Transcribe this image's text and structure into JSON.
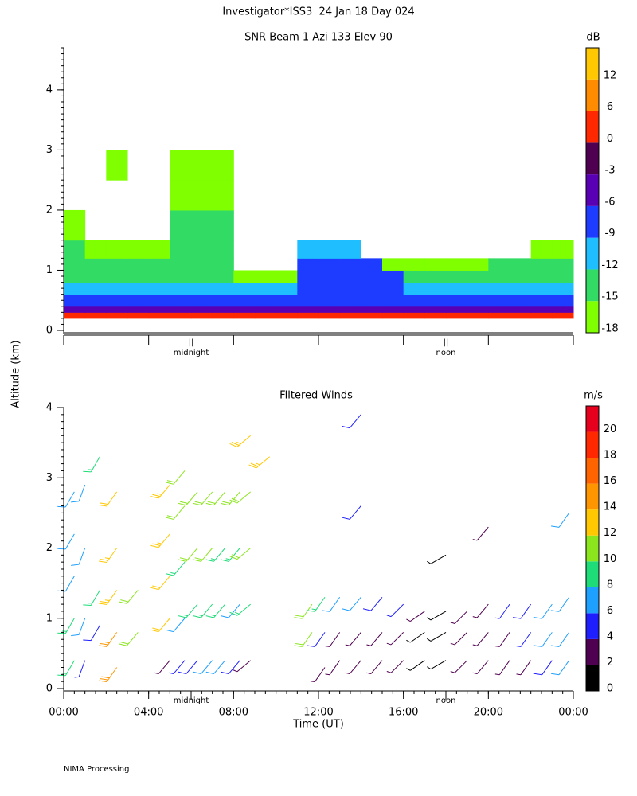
{
  "title": "Investigator*ISS3  24 Jan 18 Day 024",
  "ylabel": "Altitude (km)",
  "footer": "NIMA Processing",
  "chart_data": [
    {
      "type": "heatmap",
      "title": "SNR Beam 1 Azi 133 Elev 90",
      "colorbar_title": "dB",
      "levels": [
        -18,
        -15,
        -12,
        -9,
        -6,
        -3,
        0,
        6,
        12
      ],
      "colors": [
        "#7fff00",
        "#32dc64",
        "#1ebeff",
        "#1e3cff",
        "#5a00b4",
        "#500050",
        "#ff2800",
        "#ff8c00",
        "#ffc800"
      ],
      "xlim": [
        0,
        24
      ],
      "xticks": [
        0,
        4,
        8,
        12,
        16,
        20,
        24
      ],
      "ylim": [
        0,
        4.7
      ],
      "yticks": [
        0,
        1,
        2,
        3,
        4
      ],
      "annotations": [
        {
          "text": "midnight",
          "x": 6
        },
        {
          "text": "noon",
          "x": 18
        }
      ],
      "x_edges": [
        0,
        1,
        2,
        3,
        4,
        5,
        6,
        7,
        8,
        9,
        10,
        11,
        12,
        13,
        14,
        15,
        16,
        17,
        18,
        19,
        20,
        21,
        22,
        23,
        24
      ],
      "y_edges": [
        0.2,
        0.3,
        0.4,
        0.6,
        0.8,
        1.0,
        1.2,
        1.5,
        2.0,
        2.5,
        3.0
      ],
      "values": [
        [
          2,
          2,
          2,
          2,
          2,
          2,
          2,
          2,
          2,
          2,
          2,
          2,
          2,
          2,
          2,
          2,
          2,
          2,
          2,
          2,
          2,
          2,
          2,
          2
        ],
        [
          -4,
          -4,
          -4,
          -4,
          -4,
          -4,
          -4,
          -4,
          -4,
          -4,
          -4,
          -4,
          -4,
          -4,
          -4,
          -4,
          -4,
          -4,
          -4,
          -4,
          -4,
          -4,
          -4,
          -4
        ],
        [
          -8,
          -8,
          -8,
          -8,
          -8,
          -8,
          -8,
          -8,
          -8,
          -8,
          -8,
          -8,
          -8,
          -8,
          -8,
          -8,
          -8,
          -8,
          -8,
          -8,
          -8,
          -8,
          -8,
          -8
        ],
        [
          -11,
          -11,
          -11,
          -11,
          -11,
          -11,
          -11,
          -11,
          -11,
          -11,
          -11,
          -8,
          -8,
          -8,
          -8,
          -8,
          -11,
          -11,
          -11,
          -11,
          -11,
          -11,
          -11,
          -11
        ],
        [
          -13,
          -13,
          -13,
          -13,
          -13,
          -13,
          -13,
          -13,
          -16,
          -16,
          -16,
          -8,
          -8,
          -8,
          -8,
          -8,
          -13,
          -13,
          -13,
          -13,
          -13,
          -13,
          -13,
          -13
        ],
        [
          -15,
          -15,
          -15,
          -15,
          -15,
          -15,
          -15,
          -15,
          null,
          null,
          null,
          -9,
          -9,
          -9,
          -9,
          -16,
          -16,
          -16,
          -16,
          -16,
          -14,
          -14,
          -14,
          -14
        ],
        [
          -14,
          -17,
          -17,
          -17,
          -17,
          -14,
          -14,
          -14,
          null,
          null,
          null,
          -11,
          -11,
          -11,
          null,
          null,
          null,
          null,
          null,
          null,
          null,
          null,
          -16,
          -16
        ],
        [
          -17,
          null,
          null,
          null,
          null,
          -15,
          -15,
          -15,
          null,
          null,
          null,
          null,
          null,
          null,
          null,
          null,
          null,
          null,
          null,
          null,
          null,
          null,
          null,
          null
        ],
        [
          null,
          null,
          null,
          null,
          null,
          -16,
          -16,
          -16,
          null,
          null,
          null,
          null,
          null,
          null,
          null,
          null,
          null,
          null,
          null,
          null,
          null,
          null,
          null,
          null
        ],
        [
          null,
          null,
          -16,
          null,
          null,
          -16,
          -16,
          -16,
          null,
          null,
          null,
          null,
          null,
          null,
          null,
          null,
          null,
          null,
          null,
          null,
          null,
          null,
          null,
          null
        ]
      ]
    },
    {
      "type": "barbs",
      "title": "Filtered Winds",
      "colorbar_title": "m/s",
      "xlabel": "Time (UT)",
      "clim": [
        0,
        22
      ],
      "cticks": [
        0,
        2,
        4,
        6,
        8,
        10,
        12,
        14,
        16,
        18,
        20
      ],
      "colors": [
        "#000000",
        "#500050",
        "#1e1eff",
        "#1ea0ff",
        "#1edc78",
        "#8ce61e",
        "#ffc800",
        "#ff9600",
        "#ff6400",
        "#ff2800",
        "#e6001e"
      ],
      "xlim": [
        0,
        24
      ],
      "ylim": [
        0,
        4
      ],
      "yticks": [
        0,
        1,
        2,
        3,
        4
      ],
      "xticks": [
        {
          "value": 0,
          "label": "00:00"
        },
        {
          "value": 4,
          "label": "04:00"
        },
        {
          "value": 8,
          "label": "08:00"
        },
        {
          "value": 12,
          "label": "12:00"
        },
        {
          "value": 16,
          "label": "16:00"
        },
        {
          "value": 20,
          "label": "20:00"
        },
        {
          "value": 24,
          "label": "00:00"
        }
      ],
      "annotations": [
        {
          "text": "midnight",
          "x": 6
        },
        {
          "text": "noon",
          "x": 18
        }
      ],
      "columns": [
        {
          "time": 0.5,
          "direction": 210,
          "altitude": [
            0.4,
            1.0,
            1.6,
            2.2,
            2.8
          ],
          "speed": [
            9,
            8,
            7,
            7,
            6
          ]
        },
        {
          "time": 1.0,
          "direction": 200,
          "altitude": [
            0.4,
            1.0,
            2.0,
            2.9
          ],
          "speed": [
            4,
            6,
            7,
            6
          ]
        },
        {
          "time": 1.7,
          "direction": 210,
          "altitude": [
            0.9,
            1.4,
            3.3
          ],
          "speed": [
            5,
            8,
            9
          ]
        },
        {
          "time": 2.5,
          "direction": 215,
          "altitude": [
            0.3,
            0.8,
            1.4,
            2.0,
            2.8
          ],
          "speed": [
            15,
            14,
            13,
            13,
            12
          ]
        },
        {
          "time": 3.5,
          "direction": 220,
          "altitude": [
            0.8,
            1.4
          ],
          "speed": [
            11,
            11
          ]
        },
        {
          "time": 5.0,
          "direction": 220,
          "altitude": [
            0.4,
            1.0,
            1.6,
            2.2,
            2.9
          ],
          "speed": [
            3,
            12,
            12,
            13,
            13
          ]
        },
        {
          "time": 5.7,
          "direction": 220,
          "altitude": [
            0.4,
            1.0,
            1.8,
            2.6,
            3.1
          ],
          "speed": [
            4,
            7,
            9,
            10,
            10
          ]
        },
        {
          "time": 6.3,
          "direction": 220,
          "altitude": [
            0.4,
            1.2,
            2.0,
            2.8
          ],
          "speed": [
            5,
            8,
            10,
            10
          ]
        },
        {
          "time": 7.0,
          "direction": 220,
          "altitude": [
            0.4,
            1.2,
            2.0,
            2.8
          ],
          "speed": [
            6,
            8,
            10,
            11
          ]
        },
        {
          "time": 7.6,
          "direction": 220,
          "altitude": [
            0.4,
            1.2,
            2.0,
            2.8
          ],
          "speed": [
            7,
            8,
            9,
            10
          ]
        },
        {
          "time": 8.3,
          "direction": 220,
          "altitude": [
            0.4,
            1.2,
            2.0,
            2.8
          ],
          "speed": [
            5,
            7,
            9,
            10
          ]
        },
        {
          "time": 8.8,
          "direction": 230,
          "altitude": [
            0.4,
            1.2,
            2.0,
            2.8,
            3.6
          ],
          "speed": [
            3,
            8,
            10,
            10,
            13
          ]
        },
        {
          "time": 9.7,
          "direction": 230,
          "altitude": [
            3.3
          ],
          "speed": [
            13
          ]
        },
        {
          "time": 11.7,
          "direction": 215,
          "altitude": [
            0.8,
            1.2
          ],
          "speed": [
            10,
            10
          ]
        },
        {
          "time": 12.3,
          "direction": 215,
          "altitude": [
            0.3,
            0.8,
            1.3
          ],
          "speed": [
            3,
            5,
            8
          ]
        },
        {
          "time": 13.0,
          "direction": 215,
          "altitude": [
            0.4,
            0.8,
            1.3
          ],
          "speed": [
            2,
            3,
            7
          ]
        },
        {
          "time": 14.0,
          "direction": 220,
          "altitude": [
            0.4,
            0.8,
            1.3,
            2.6,
            3.9
          ],
          "speed": [
            2,
            2,
            6,
            5,
            5
          ]
        },
        {
          "time": 15.0,
          "direction": 220,
          "altitude": [
            0.4,
            0.8,
            1.3
          ],
          "speed": [
            2,
            2,
            5
          ]
        },
        {
          "time": 16.0,
          "direction": 225,
          "altitude": [
            0.4,
            0.8,
            1.2
          ],
          "speed": [
            2,
            2,
            4
          ]
        },
        {
          "time": 17.0,
          "direction": 235,
          "altitude": [
            0.4,
            0.8,
            1.1
          ],
          "speed": [
            1,
            1,
            2
          ]
        },
        {
          "time": 18.0,
          "direction": 240,
          "altitude": [
            0.4,
            0.8,
            1.1,
            1.9
          ],
          "speed": [
            1,
            1,
            1,
            1
          ]
        },
        {
          "time": 19.0,
          "direction": 225,
          "altitude": [
            0.4,
            0.8,
            1.1
          ],
          "speed": [
            2,
            2,
            3
          ]
        },
        {
          "time": 20.0,
          "direction": 220,
          "altitude": [
            0.4,
            0.8,
            1.2,
            2.3
          ],
          "speed": [
            2,
            2,
            3,
            3
          ]
        },
        {
          "time": 21.0,
          "direction": 215,
          "altitude": [
            0.4,
            0.8,
            1.2
          ],
          "speed": [
            2,
            3,
            4
          ]
        },
        {
          "time": 22.0,
          "direction": 215,
          "altitude": [
            0.4,
            0.8,
            1.2
          ],
          "speed": [
            3,
            4,
            5
          ]
        },
        {
          "time": 23.0,
          "direction": 215,
          "altitude": [
            0.4,
            0.8,
            1.2
          ],
          "speed": [
            5,
            6,
            7
          ]
        },
        {
          "time": 23.8,
          "direction": 215,
          "altitude": [
            0.4,
            0.8,
            1.3,
            2.5
          ],
          "speed": [
            6,
            7,
            7,
            6
          ]
        }
      ]
    }
  ]
}
